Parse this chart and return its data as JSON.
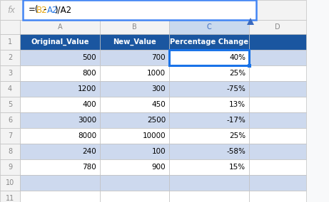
{
  "formula_b2_color": "#e6a817",
  "formula_a2_color": "#2c7be5",
  "col_letters": [
    "A",
    "B",
    "C",
    "D"
  ],
  "headers": [
    "Original_Value",
    "New_Value",
    "Percentage Change"
  ],
  "data": [
    [
      500,
      700,
      "40%"
    ],
    [
      800,
      1000,
      "25%"
    ],
    [
      1200,
      300,
      "-75%"
    ],
    [
      400,
      450,
      "13%"
    ],
    [
      3000,
      2500,
      "-17%"
    ],
    [
      8000,
      10000,
      "25%"
    ],
    [
      240,
      100,
      "-58%"
    ],
    [
      780,
      900,
      "15%"
    ]
  ],
  "header_bg": "#1a56a0",
  "header_text": "#ffffff",
  "alt_row_bg": "#cdd9ee",
  "white_row_bg": "#ffffff",
  "grid_color": "#c0c0c0",
  "formula_bar_bg": "#ffffff",
  "formula_bar_border": "#4285f4",
  "selected_cell_border": "#1a73e8",
  "col_header_bg": "#f3f3f3",
  "col_header_text": "#888888",
  "row_header_bg": "#f3f3f3",
  "row_header_text": "#888888",
  "sheet_bg": "#f8f9fa",
  "arrow_color": "#3a6abf"
}
